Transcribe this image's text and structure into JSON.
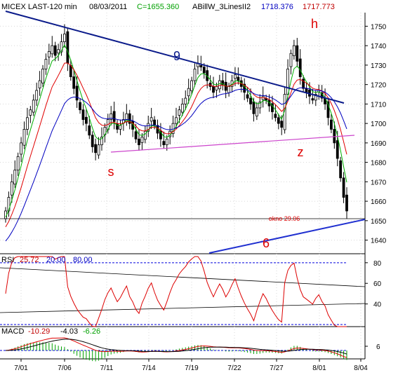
{
  "header": {
    "symbol": "MICEX LAST-120 min",
    "date": "08/03/2011",
    "close_label": "C=1655.360",
    "study_name": "ABillW_3LinesII2",
    "study_val1": "1718.376",
    "study_val2": "1717.773"
  },
  "colors": {
    "candle": "#000000",
    "red_ma": "#e00000",
    "green_ma": "#00b000",
    "blue_ma": "#0000c0",
    "trend_9": "#0a1a8a",
    "magenta": "#cc44cc",
    "rsi": "#dd0000",
    "annotation": "#dd0000",
    "dash_blue": "#0000dd"
  },
  "chart_data": [
    {
      "type": "candlestick",
      "panel": "price",
      "y_ticks": [
        1640,
        1650,
        1660,
        1670,
        1680,
        1690,
        1700,
        1710,
        1720,
        1730,
        1740,
        1750
      ],
      "ylim": [
        1633,
        1757
      ],
      "x_ticks": [
        "7/01",
        "7/06",
        "7/11",
        "7/14",
        "7/19",
        "7/22",
        "7/27",
        "8/01",
        "8/04"
      ],
      "grid": true,
      "annotations": [
        {
          "text": "h",
          "x": "8/01",
          "y": 1749
        },
        {
          "text": "9",
          "x": "7/17",
          "y": 1732
        },
        {
          "text": "s",
          "x": "7/11",
          "y": 1677
        },
        {
          "text": "z",
          "x": "7/29",
          "y": 1686
        },
        {
          "text": "6",
          "x": "7/27",
          "y": 1640
        },
        {
          "text": "okno 29.06",
          "x": "8/01",
          "y": 1652
        }
      ],
      "closes": [
        1655,
        1662,
        1670,
        1676,
        1683,
        1690,
        1697,
        1703,
        1707,
        1712,
        1717,
        1722,
        1728,
        1733,
        1737,
        1740,
        1735,
        1738,
        1742,
        1746,
        1731,
        1724,
        1718,
        1712,
        1707,
        1702,
        1700,
        1694,
        1688,
        1685,
        1689,
        1693,
        1698,
        1702,
        1705,
        1701,
        1697,
        1699,
        1702,
        1705,
        1700,
        1697,
        1692,
        1689,
        1693,
        1696,
        1700,
        1703,
        1699,
        1695,
        1692,
        1689,
        1692,
        1696,
        1700,
        1703,
        1707,
        1710,
        1713,
        1718,
        1722,
        1728,
        1731,
        1729,
        1726,
        1722,
        1719,
        1716,
        1719,
        1722,
        1720,
        1717,
        1719,
        1722,
        1725,
        1722,
        1719,
        1716,
        1713,
        1710,
        1705,
        1708,
        1711,
        1714,
        1712,
        1709,
        1706,
        1703,
        1700,
        1698,
        1715,
        1728,
        1736,
        1740,
        1732,
        1724,
        1718,
        1716,
        1714,
        1712,
        1715,
        1717,
        1713,
        1710,
        1703,
        1697,
        1690,
        1682,
        1672,
        1662,
        1655
      ]
    },
    {
      "type": "line",
      "panel": "rsi",
      "title": "RSI",
      "rsi_value": "25.72",
      "low_level": "20.00",
      "high_level": "80.00",
      "y_ticks": [
        40,
        60,
        80
      ],
      "ylim": [
        18,
        86
      ]
    },
    {
      "type": "line",
      "panel": "macd",
      "title": "MACD",
      "macd_value": "-10.29",
      "signal_value": "-4.03",
      "hist_value": "-6.26",
      "y_ticks": [
        6
      ]
    }
  ]
}
